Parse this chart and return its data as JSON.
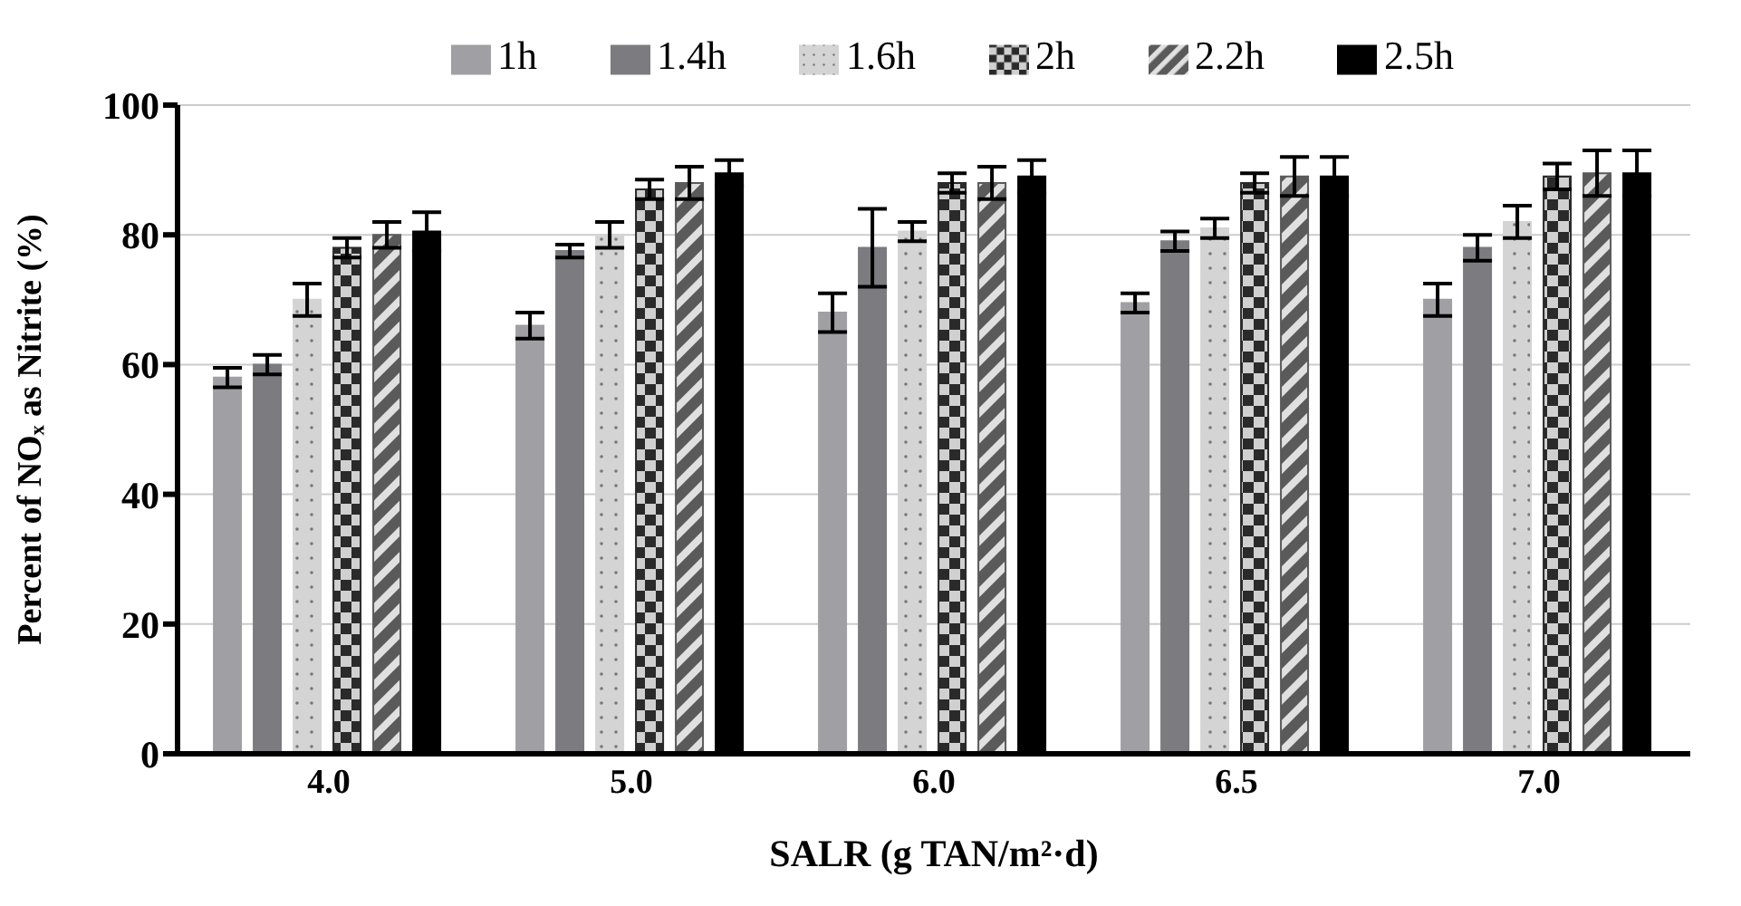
{
  "chart_data": {
    "type": "bar",
    "xlabel": "SALR (g TAN/m²·d)",
    "ylabel": "Percent of NOₓ as Nitrite (%)",
    "categories": [
      "4.0",
      "5.0",
      "6.0",
      "6.5",
      "7.0"
    ],
    "series": [
      {
        "name": "1h",
        "color": "#a0a0a4",
        "values": [
          58,
          66,
          68,
          69.5,
          70
        ],
        "errors": [
          1.5,
          2,
          3,
          1.5,
          2.5
        ]
      },
      {
        "name": "1.4h",
        "color": "#7b7b80",
        "values": [
          60,
          77.5,
          78,
          79,
          78
        ],
        "errors": [
          1.5,
          1,
          6,
          1.5,
          2
        ]
      },
      {
        "name": "1.6h",
        "color": "#d4d4d4",
        "values": [
          70,
          80,
          80.5,
          81,
          82
        ],
        "errors": [
          2.5,
          2,
          1.5,
          1.5,
          2.5
        ]
      },
      {
        "name": "2h",
        "color": "#2a2a2a",
        "values": [
          78,
          87,
          88,
          88,
          89
        ],
        "errors": [
          1.5,
          1.5,
          1.5,
          1.5,
          2
        ]
      },
      {
        "name": "2.2h",
        "color": "#5a5a5a",
        "values": [
          80,
          88,
          88,
          89,
          89.5
        ],
        "errors": [
          2,
          2.5,
          2.5,
          3,
          3.5
        ]
      },
      {
        "name": "2.5h",
        "color": "#000000",
        "values": [
          80.5,
          89.5,
          89,
          89,
          89.5
        ],
        "errors": [
          3,
          2,
          2.5,
          3,
          3.5
        ]
      }
    ],
    "ylim": [
      0,
      100
    ],
    "yticks": [
      0,
      20,
      40,
      60,
      80,
      100
    ],
    "grid": "y",
    "legend": "top"
  }
}
